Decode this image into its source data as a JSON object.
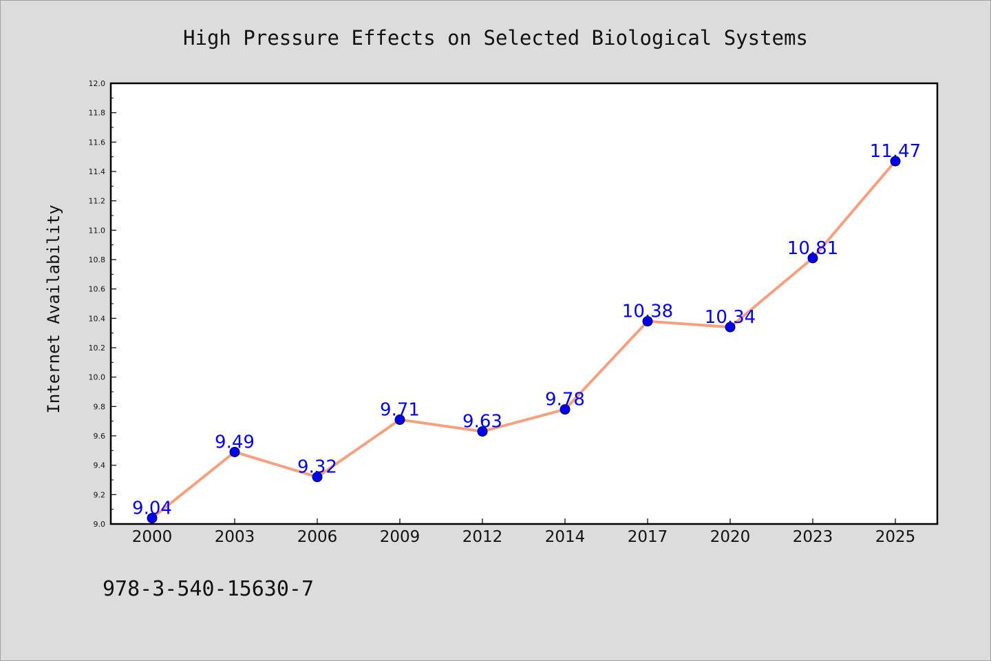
{
  "chart_data": {
    "type": "line",
    "title": "High Pressure Effects on Selected Biological Systems",
    "ylabel": "Internet Availability",
    "xlabel": "",
    "categories": [
      "2000",
      "2003",
      "2006",
      "2009",
      "2012",
      "2014",
      "2017",
      "2020",
      "2023",
      "2025"
    ],
    "series": [
      {
        "values": [
          9.04,
          9.49,
          9.32,
          9.71,
          9.63,
          9.78,
          10.38,
          10.34,
          10.81,
          11.47
        ],
        "data_labels": [
          "9.04",
          "9.49",
          "9.32",
          "9.71",
          "9.63",
          "9.78",
          "10.38",
          "10.34",
          "10.81",
          "11.47"
        ]
      }
    ],
    "ylim": [
      9.0,
      12.0
    ],
    "y_ticks": [
      "9.0",
      "9.2",
      "9.4",
      "9.6",
      "9.8",
      "10.0",
      "10.2",
      "10.4",
      "10.6",
      "10.8",
      "11.0",
      "11.2",
      "11.4",
      "11.6",
      "11.8",
      "12.0"
    ],
    "grid": false,
    "legend": "none",
    "colors": {
      "line": "#f5a07f",
      "marker": "#0000ee",
      "label": "#0000ee",
      "plot_background": "#ffffff",
      "figure_background": "#dcdcdc"
    }
  },
  "footer": {
    "isbn": "978-3-540-15630-7"
  }
}
